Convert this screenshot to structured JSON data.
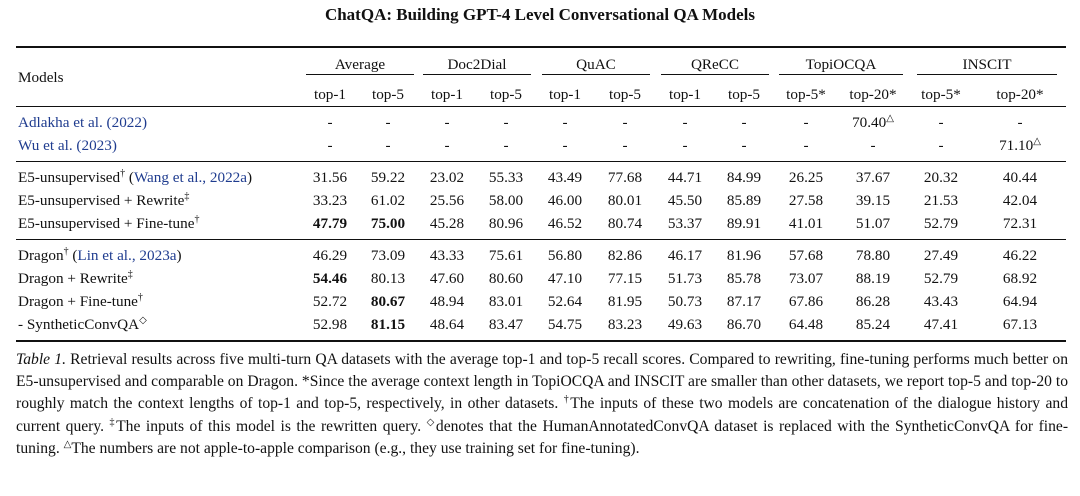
{
  "paper_title": "ChatQA: Building GPT-4 Level Conversational QA Models",
  "table": {
    "models_header": "Models",
    "groups": [
      "Average",
      "Doc2Dial",
      "QuAC",
      "QReCC",
      "TopiOCQA",
      "INSCIT"
    ],
    "subheaders": [
      "top-1",
      "top-5",
      "top-1",
      "top-5",
      "top-1",
      "top-5",
      "top-1",
      "top-5",
      "top-5*",
      "top-20*",
      "top-5*",
      "top-20*"
    ],
    "rows": [
      {
        "name": "Adlakha et al. (2022)",
        "vals": [
          "-",
          "-",
          "-",
          "-",
          "-",
          "-",
          "-",
          "-",
          "-",
          "70.40",
          "-",
          "-"
        ]
      },
      {
        "name": "Wu et al. (2023)",
        "vals": [
          "-",
          "-",
          "-",
          "-",
          "-",
          "-",
          "-",
          "-",
          "-",
          "-",
          "-",
          "71.10"
        ]
      },
      {
        "name": "E5-unsupervised",
        "cite": "Wang et al., 2022a",
        "vals": [
          "31.56",
          "59.22",
          "23.02",
          "55.33",
          "43.49",
          "77.68",
          "44.71",
          "84.99",
          "26.25",
          "37.67",
          "20.32",
          "40.44"
        ]
      },
      {
        "name": "E5-unsupervised + Rewrite",
        "vals": [
          "33.23",
          "61.02",
          "25.56",
          "58.00",
          "46.00",
          "80.01",
          "45.50",
          "85.89",
          "27.58",
          "39.15",
          "21.53",
          "42.04"
        ]
      },
      {
        "name": "E5-unsupervised + Fine-tune",
        "vals": [
          "47.79",
          "75.00",
          "45.28",
          "80.96",
          "46.52",
          "80.74",
          "53.37",
          "89.91",
          "41.01",
          "51.07",
          "52.79",
          "72.31"
        ]
      },
      {
        "name": "Dragon",
        "cite": "Lin et al., 2023a",
        "vals": [
          "46.29",
          "73.09",
          "43.33",
          "75.61",
          "56.80",
          "82.86",
          "46.17",
          "81.96",
          "57.68",
          "78.80",
          "27.49",
          "46.22"
        ]
      },
      {
        "name": "Dragon + Rewrite",
        "vals": [
          "54.46",
          "80.13",
          "47.60",
          "80.60",
          "47.10",
          "77.15",
          "51.73",
          "85.78",
          "73.07",
          "88.19",
          "52.79",
          "68.92"
        ]
      },
      {
        "name": "Dragon + Fine-tune",
        "vals": [
          "52.72",
          "80.67",
          "48.94",
          "83.01",
          "52.64",
          "81.95",
          "50.73",
          "87.17",
          "67.86",
          "86.28",
          "43.43",
          "64.94"
        ]
      },
      {
        "name": "- SyntheticConvQA",
        "vals": [
          "52.98",
          "81.15",
          "48.64",
          "83.47",
          "54.75",
          "83.23",
          "49.63",
          "86.70",
          "64.48",
          "85.24",
          "47.41",
          "67.13"
        ]
      }
    ]
  },
  "symbols": {
    "dagger": "†",
    "ddagger": "‡",
    "diamond": "◇",
    "triangle": "△"
  },
  "caption": {
    "label": "Table 1.",
    "s1": " Retrieval results across five multi-turn QA datasets with the average top-1 and top-5 recall scores. Compared to rewriting, fine-tuning performs much better on E5-unsupervised and comparable on Dragon. *Since the average context length in TopiOCQA and INSCIT are smaller than other datasets, we report top-5 and top-20 to roughly match the context lengths of top-1 and top-5, respectively, in other datasets. ",
    "s2": "The inputs of these two models are concatenation of the dialogue history and current query. ",
    "s3": "The inputs of this model is the rewritten query. ",
    "s4": "denotes that the HumanAnnotatedConvQA dataset is replaced with the SyntheticConvQA for fine-tuning. ",
    "s5": "The numbers are not apple-to-apple comparison (e.g., they use training set for fine-tuning)."
  }
}
